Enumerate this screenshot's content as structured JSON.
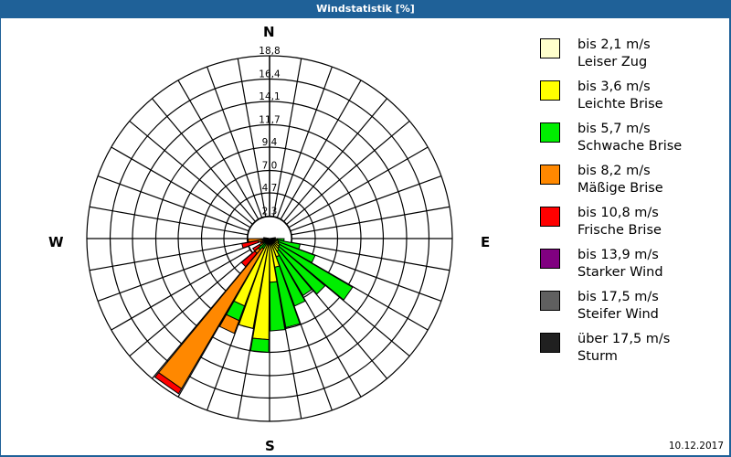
{
  "window": {
    "title": "Windstatistik [%]",
    "date": "10.12.2017",
    "colors": {
      "titlebar": "#1f6198",
      "background": "#ffffff"
    }
  },
  "compass": {
    "n": "N",
    "e": "E",
    "s": "S",
    "w": "W"
  },
  "chart_data": {
    "type": "wind-rose",
    "title": "Windstatistik [%]",
    "unit": "%",
    "radial_ticks": [
      2.3,
      4.7,
      7.0,
      9.4,
      11.7,
      14.1,
      16.4,
      18.8
    ],
    "radial_tick_labels": [
      "2,3",
      "4,7",
      "7,0",
      "9,4",
      "11,7",
      "14,1",
      "16,4",
      "18,8"
    ],
    "rmax": 18.8,
    "sector_width_deg": 10,
    "grid": true,
    "legend_position": "right",
    "classes": [
      {
        "key": "c1",
        "range": "bis 2,1 m/s",
        "name": "Leiser Zug",
        "color": "#ffffcc"
      },
      {
        "key": "c2",
        "range": "bis 3,6 m/s",
        "name": "Leichte Brise",
        "color": "#ffff00"
      },
      {
        "key": "c3",
        "range": "bis 5,7 m/s",
        "name": "Schwache Brise",
        "color": "#00ee00"
      },
      {
        "key": "c4",
        "range": "bis 8,2 m/s",
        "name": "Mäßige Brise",
        "color": "#ff8800"
      },
      {
        "key": "c5",
        "range": "bis 10,8 m/s",
        "name": "Frische Brise",
        "color": "#ff0000"
      },
      {
        "key": "c6",
        "range": "bis 13,9 m/s",
        "name": "Starker Wind",
        "color": "#800080"
      },
      {
        "key": "c7",
        "range": "bis 17,5 m/s",
        "name": "Steifer Wind",
        "color": "#606060"
      },
      {
        "key": "c8",
        "range": "über 17,5 m/s",
        "name": "Sturm",
        "color": "#202020"
      }
    ],
    "sectors": [
      {
        "from": 90,
        "to": 100,
        "cumulative": [
          0.2,
          0.8,
          1.5
        ]
      },
      {
        "from": 100,
        "to": 110,
        "cumulative": [
          0.2,
          0.9,
          3.2
        ]
      },
      {
        "from": 110,
        "to": 120,
        "cumulative": [
          0.2,
          1.0,
          5.0
        ]
      },
      {
        "from": 120,
        "to": 130,
        "cumulative": [
          0.3,
          1.2,
          9.9
        ]
      },
      {
        "from": 130,
        "to": 140,
        "cumulative": [
          0.3,
          1.3,
          7.5
        ]
      },
      {
        "from": 140,
        "to": 150,
        "cumulative": [
          0.3,
          1.5,
          6.8
        ]
      },
      {
        "from": 150,
        "to": 160,
        "cumulative": [
          0.3,
          2.0,
          7.4
        ]
      },
      {
        "from": 160,
        "to": 170,
        "cumulative": [
          0.3,
          3.0,
          9.3
        ]
      },
      {
        "from": 170,
        "to": 180,
        "cumulative": [
          0.3,
          4.5,
          9.5
        ]
      },
      {
        "from": 180,
        "to": 190,
        "cumulative": [
          0.3,
          10.4,
          11.7
        ]
      },
      {
        "from": 190,
        "to": 200,
        "cumulative": [
          0.3,
          9.4,
          9.4
        ]
      },
      {
        "from": 200,
        "to": 210,
        "cumulative": [
          0.3,
          7.4,
          9.0,
          10.4
        ]
      },
      {
        "from": 210,
        "to": 220,
        "cumulative": [
          0.3,
          0.5,
          1.2,
          17.9,
          18.5
        ]
      },
      {
        "from": 220,
        "to": 230,
        "cumulative": [
          0.2,
          0.5,
          1.5,
          2.0,
          3.8
        ]
      },
      {
        "from": 230,
        "to": 240,
        "cumulative": [
          0.2,
          0.4,
          0.8,
          1.2,
          2.0
        ]
      },
      {
        "from": 240,
        "to": 250,
        "cumulative": [
          0.1,
          0.2,
          0.4,
          0.8,
          1.0
        ]
      },
      {
        "from": 250,
        "to": 260,
        "cumulative": [
          0.1,
          0.2,
          0.3,
          1.2,
          2.9
        ]
      },
      {
        "from": 260,
        "to": 270,
        "cumulative": [
          0.1,
          0.2,
          0.3,
          2.2,
          2.2
        ]
      },
      {
        "from": 270,
        "to": 280,
        "cumulative": [
          0.1,
          0.2,
          0.3,
          0.6,
          0.6
        ]
      },
      {
        "from": 80,
        "to": 90,
        "cumulative": [
          0.1,
          0.3,
          0.6
        ]
      }
    ]
  }
}
